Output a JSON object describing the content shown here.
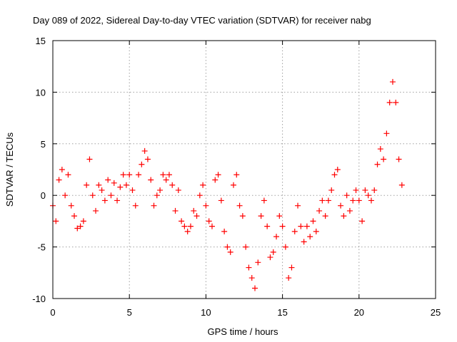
{
  "chart_data": {
    "type": "scatter",
    "title": "Day 089 of 2022, Sidereal Day-to-day VTEC variation (SDTVAR) for receiver nabg",
    "xlabel": "GPS time / hours",
    "ylabel": "SDTVAR / TECUs",
    "xlim": [
      0,
      25
    ],
    "ylim": [
      -10,
      15
    ],
    "xticks": [
      0,
      5,
      10,
      15,
      20,
      25
    ],
    "yticks": [
      -10,
      -5,
      0,
      5,
      10,
      15
    ],
    "xtick_labels": [
      "0",
      "5",
      "10",
      "15",
      "20",
      "25"
    ],
    "ytick_labels": [
      "-10",
      "-5",
      "0",
      "5",
      "10",
      "15"
    ],
    "grid": true,
    "marker": "+",
    "series": [
      {
        "name": "nabg",
        "color": "#ff0000",
        "x": [
          0.0,
          0.2,
          0.4,
          0.6,
          0.8,
          1.0,
          1.2,
          1.4,
          1.6,
          1.8,
          2.0,
          2.2,
          2.4,
          2.6,
          2.8,
          3.0,
          3.2,
          3.4,
          3.6,
          3.8,
          4.0,
          4.2,
          4.4,
          4.6,
          4.8,
          5.0,
          5.2,
          5.4,
          5.6,
          5.8,
          6.0,
          6.2,
          6.4,
          6.6,
          6.8,
          7.0,
          7.2,
          7.4,
          7.6,
          7.8,
          8.0,
          8.2,
          8.4,
          8.6,
          8.8,
          9.0,
          9.2,
          9.4,
          9.6,
          9.8,
          10.0,
          10.2,
          10.4,
          10.6,
          10.8,
          11.0,
          11.2,
          11.4,
          11.6,
          11.8,
          12.0,
          12.2,
          12.4,
          12.6,
          12.8,
          13.0,
          13.2,
          13.4,
          13.6,
          13.8,
          14.0,
          14.2,
          14.4,
          14.6,
          14.8,
          15.0,
          15.2,
          15.4,
          15.6,
          15.8,
          16.0,
          16.2,
          16.4,
          16.6,
          16.8,
          17.0,
          17.2,
          17.4,
          17.6,
          17.8,
          18.0,
          18.2,
          18.4,
          18.6,
          18.8,
          19.0,
          19.2,
          19.4,
          19.6,
          19.8,
          20.0,
          20.2,
          20.4,
          20.6,
          20.8,
          21.0,
          21.2,
          21.4,
          21.6,
          21.8,
          22.0,
          22.2,
          22.4,
          22.6,
          22.8
        ],
        "y": [
          -1.0,
          -2.5,
          1.5,
          2.5,
          0.0,
          2.0,
          -1.0,
          -2.0,
          -3.2,
          -3.0,
          -2.5,
          1.0,
          3.5,
          0.0,
          -1.5,
          1.0,
          0.5,
          -0.5,
          1.5,
          0.0,
          1.2,
          -0.5,
          0.8,
          2.0,
          1.0,
          2.0,
          0.5,
          -1.0,
          2.0,
          3.0,
          4.3,
          3.5,
          1.5,
          -1.0,
          0.0,
          0.5,
          2.0,
          1.5,
          2.0,
          1.0,
          -1.5,
          0.5,
          -2.5,
          -3.0,
          -3.5,
          -3.0,
          -1.5,
          -2.0,
          0.0,
          1.0,
          -1.0,
          -2.5,
          -3.0,
          1.5,
          2.0,
          -0.5,
          -3.5,
          -5.0,
          -5.5,
          1.0,
          2.0,
          -1.0,
          -2.0,
          -5.0,
          -7.0,
          -8.0,
          -9.0,
          -6.5,
          -2.0,
          -0.5,
          -3.0,
          -6.0,
          -5.5,
          -4.0,
          -2.0,
          -3.0,
          -5.0,
          -8.0,
          -7.0,
          -3.5,
          -1.0,
          -3.0,
          -4.5,
          -3.0,
          -4.0,
          -2.5,
          -3.5,
          -1.5,
          -0.5,
          -2.0,
          -0.5,
          0.5,
          2.0,
          2.5,
          -1.0,
          -2.0,
          0.0,
          -1.5,
          -0.5,
          0.5,
          -0.5,
          -2.5,
          0.5,
          0.0,
          -0.5,
          0.5,
          3.0,
          4.5,
          3.5,
          6.0,
          9.0,
          11.0,
          9.0,
          3.5,
          1.0
        ]
      }
    ]
  }
}
